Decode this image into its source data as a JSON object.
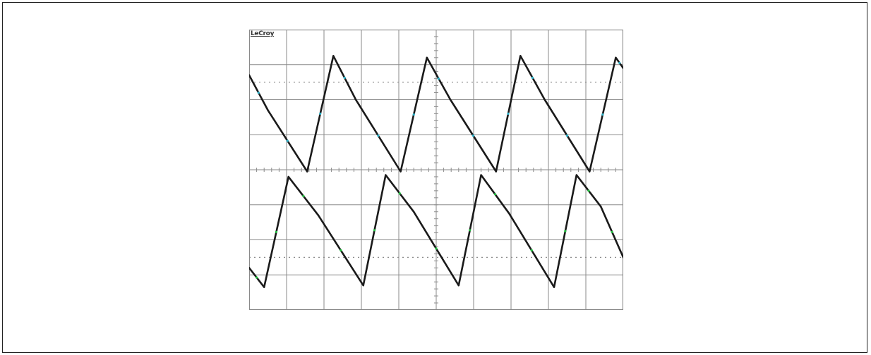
{
  "brand": {
    "text": "LeCroy"
  },
  "colors": {
    "grid": "#8a8a8a",
    "trace": "#1a1a1a",
    "marker_cyan": "#2ab0c8",
    "marker_green": "#22c040",
    "frame": "#222222"
  },
  "chart_data": {
    "type": "line",
    "title": "",
    "xlabel": "",
    "ylabel": "",
    "grid": true,
    "xlim": [
      0,
      10
    ],
    "ylim": [
      -4,
      4
    ],
    "x_divisions": 10,
    "y_divisions": 8,
    "series": [
      {
        "x": [
          0,
          0.5,
          1.55,
          2.25,
          2.85,
          4.05,
          4.75,
          5.38,
          6.6,
          7.25,
          7.9,
          9.1,
          9.8,
          10
        ],
        "y": [
          2.7,
          1.7,
          -0.05,
          3.25,
          2.0,
          -0.05,
          3.2,
          2.0,
          -0.05,
          3.25,
          2.0,
          -0.05,
          3.2,
          2.9
        ]
      },
      {
        "x": [
          0,
          0.4,
          1.05,
          1.85,
          3.05,
          3.65,
          4.4,
          5.6,
          6.2,
          6.95,
          8.15,
          8.75,
          9.4,
          10
        ],
        "y": [
          -2.8,
          -3.35,
          -0.2,
          -1.3,
          -3.3,
          -0.15,
          -1.2,
          -3.3,
          -0.15,
          -1.25,
          -3.35,
          -0.15,
          -1.05,
          -2.5
        ]
      }
    ]
  }
}
